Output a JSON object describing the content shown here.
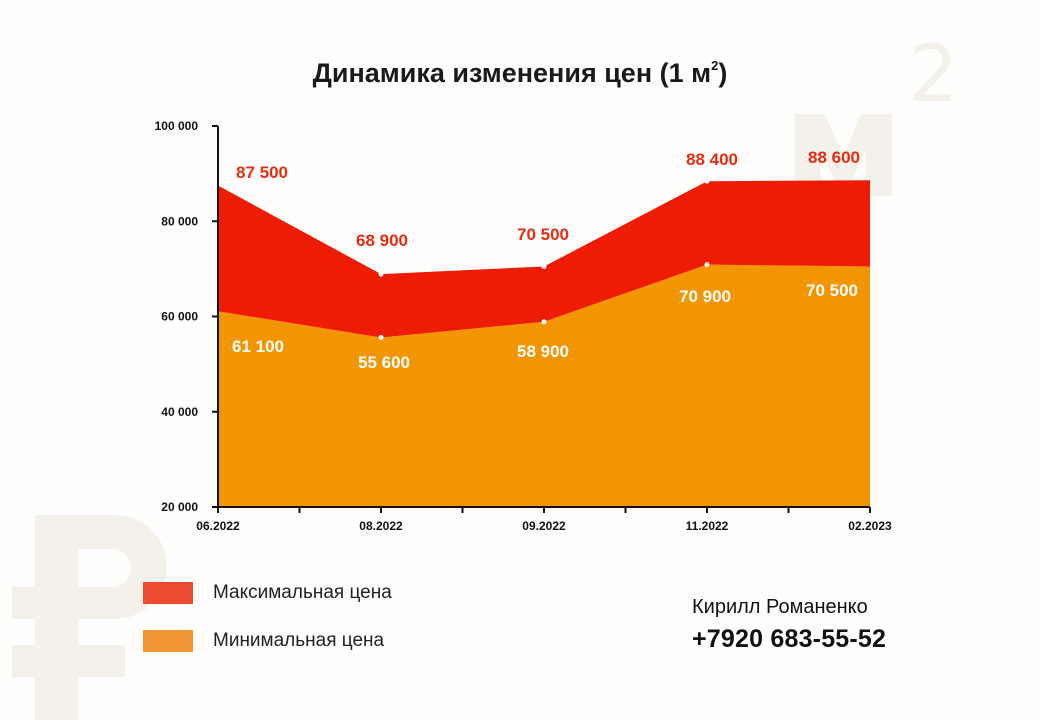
{
  "title": "Динамика изменения цен (1 м",
  "title_sup": "2",
  "watermark": {
    "m_text": "м",
    "sup_text": "2",
    "ruble_icon": "ruble-icon"
  },
  "colors": {
    "max_area": "#ee1c02",
    "min_area": "#f39500",
    "max_label": "#e52d12",
    "min_label": "#ffffff",
    "legend_max": "#ea4a2e",
    "legend_min": "#f39530",
    "watermark": "#f3f1ea"
  },
  "chart_data": {
    "type": "area",
    "x": [
      "06.2022",
      "08.2022",
      "09.2022",
      "11.2022",
      "02.2023"
    ],
    "series": [
      {
        "name": "Максимальная цена",
        "values": [
          87500,
          68900,
          70500,
          88400,
          88600
        ],
        "labels": [
          "87 500",
          "68 900",
          "70 500",
          "88 400",
          "88 600"
        ]
      },
      {
        "name": "Минимальная цена",
        "values": [
          61100,
          55600,
          58900,
          70900,
          70500
        ],
        "labels": [
          "61 100",
          "55 600",
          "58 900",
          "70 900",
          "70 500"
        ]
      }
    ],
    "y_ticks": [
      20000,
      40000,
      60000,
      80000,
      100000
    ],
    "y_tick_labels": [
      "20 000",
      "40 000",
      "60 000",
      "80 000",
      "100 000"
    ],
    "ylim": [
      20000,
      100000
    ],
    "grid": false,
    "legend_position": "bottom-left"
  },
  "legend": [
    {
      "label": "Максимальная цена",
      "color": "#ea4a2e"
    },
    {
      "label": "Минимальная цена",
      "color": "#f39530"
    }
  ],
  "contact": {
    "name": "Кирилл Романенко",
    "phone": "+7920 683-55-52"
  }
}
